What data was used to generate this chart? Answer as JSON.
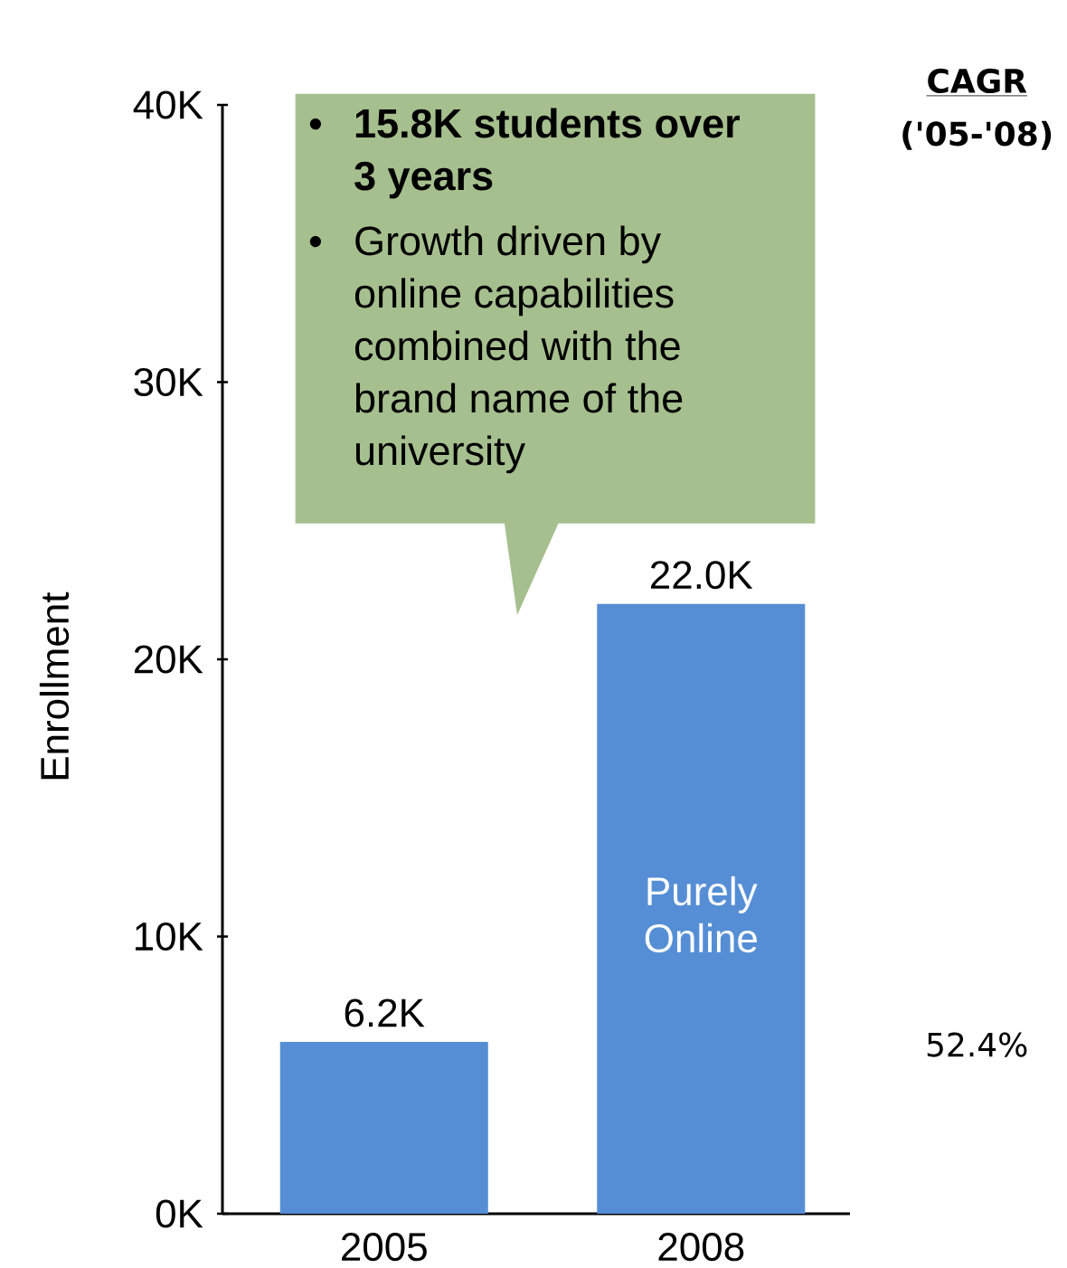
{
  "chart_data": {
    "type": "bar",
    "ylabel": "Enrollment",
    "categories": [
      "2005",
      "2008"
    ],
    "values": [
      6.2,
      22.0
    ],
    "value_labels": [
      "6.2K",
      "22.0K"
    ],
    "color": "#558ed5",
    "ylim": [
      0,
      40
    ],
    "yticks": [
      {
        "value": 0,
        "label": "0K"
      },
      {
        "value": 10,
        "label": "10K"
      },
      {
        "value": 20,
        "label": "20K"
      },
      {
        "value": 30,
        "label": "30K"
      },
      {
        "value": 40,
        "label": "40K"
      }
    ],
    "grid": false,
    "annotations": [
      "•",
      "15.8K students over 3 years",
      "•",
      "Growth driven by online capabilities combined with the brand name of the university",
      "Purely Online",
      "CAGR",
      "('05-'08)",
      "52.4%"
    ]
  }
}
